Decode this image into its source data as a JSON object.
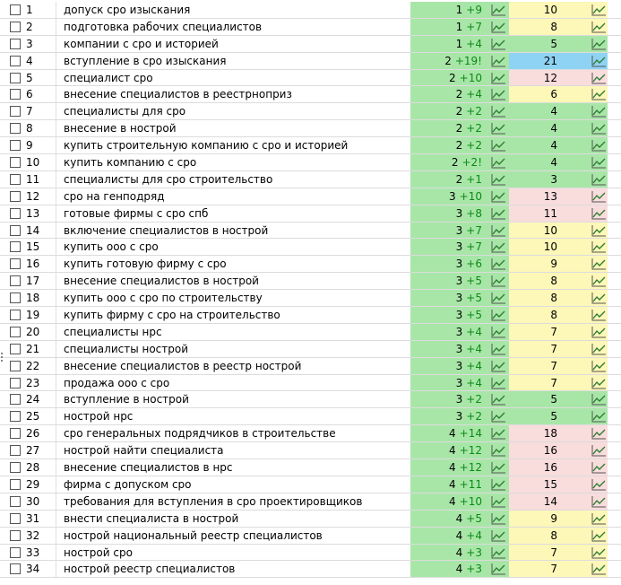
{
  "table": {
    "rows": [
      {
        "n": "1",
        "keyword": "допуск сро изыскания",
        "pos": "1",
        "delta": "+9",
        "freq": "10",
        "pos_color": "#a8e6a8",
        "freq_color": "#fdf7b8"
      },
      {
        "n": "2",
        "keyword": "подготовка рабочих специалистов",
        "pos": "1",
        "delta": "+7",
        "freq": "8",
        "pos_color": "#a8e6a8",
        "freq_color": "#fdf7b8"
      },
      {
        "n": "3",
        "keyword": "компании с сро и историей",
        "pos": "1",
        "delta": "+4",
        "freq": "5",
        "pos_color": "#a8e6a8",
        "freq_color": "#a8e6a8"
      },
      {
        "n": "4",
        "keyword": "вступление в сро изыскания",
        "pos": "2",
        "delta": "+19!",
        "freq": "21",
        "pos_color": "#a8e6a8",
        "freq_color": "#8fd3f4"
      },
      {
        "n": "5",
        "keyword": "специалист сро",
        "pos": "2",
        "delta": "+10",
        "freq": "12",
        "pos_color": "#a8e6a8",
        "freq_color": "#f9dcdc"
      },
      {
        "n": "6",
        "keyword": "внесение специалистов в реестрноприз",
        "pos": "2",
        "delta": "+4",
        "freq": "6",
        "pos_color": "#a8e6a8",
        "freq_color": "#fdf7b8"
      },
      {
        "n": "7",
        "keyword": "специалисты для сро",
        "pos": "2",
        "delta": "+2",
        "freq": "4",
        "pos_color": "#a8e6a8",
        "freq_color": "#a8e6a8"
      },
      {
        "n": "8",
        "keyword": "внесение в нострой",
        "pos": "2",
        "delta": "+2",
        "freq": "4",
        "pos_color": "#a8e6a8",
        "freq_color": "#a8e6a8"
      },
      {
        "n": "9",
        "keyword": "купить строительную компанию с сро и историей",
        "pos": "2",
        "delta": "+2",
        "freq": "4",
        "pos_color": "#a8e6a8",
        "freq_color": "#a8e6a8"
      },
      {
        "n": "10",
        "keyword": "купить компанию с сро",
        "pos": "2",
        "delta": "+2!",
        "freq": "4",
        "pos_color": "#a8e6a8",
        "freq_color": "#a8e6a8"
      },
      {
        "n": "11",
        "keyword": "специалисты для сро строительство",
        "pos": "2",
        "delta": "+1",
        "freq": "3",
        "pos_color": "#a8e6a8",
        "freq_color": "#a8e6a8"
      },
      {
        "n": "12",
        "keyword": "сро на генподряд",
        "pos": "3",
        "delta": "+10",
        "freq": "13",
        "pos_color": "#a8e6a8",
        "freq_color": "#f9dcdc"
      },
      {
        "n": "13",
        "keyword": "готовые фирмы с сро спб",
        "pos": "3",
        "delta": "+8",
        "freq": "11",
        "pos_color": "#a8e6a8",
        "freq_color": "#f9dcdc"
      },
      {
        "n": "14",
        "keyword": "включение специалистов в нострой",
        "pos": "3",
        "delta": "+7",
        "freq": "10",
        "pos_color": "#a8e6a8",
        "freq_color": "#fdf7b8"
      },
      {
        "n": "15",
        "keyword": "купить ооо с сро",
        "pos": "3",
        "delta": "+7",
        "freq": "10",
        "pos_color": "#a8e6a8",
        "freq_color": "#fdf7b8"
      },
      {
        "n": "16",
        "keyword": "купить готовую фирму с сро",
        "pos": "3",
        "delta": "+6",
        "freq": "9",
        "pos_color": "#a8e6a8",
        "freq_color": "#fdf7b8"
      },
      {
        "n": "17",
        "keyword": "внесение специалистов в нострой",
        "pos": "3",
        "delta": "+5",
        "freq": "8",
        "pos_color": "#a8e6a8",
        "freq_color": "#fdf7b8"
      },
      {
        "n": "18",
        "keyword": "купить ооо с сро по строительству",
        "pos": "3",
        "delta": "+5",
        "freq": "8",
        "pos_color": "#a8e6a8",
        "freq_color": "#fdf7b8"
      },
      {
        "n": "19",
        "keyword": "купить фирму с сро на строительство",
        "pos": "3",
        "delta": "+5",
        "freq": "8",
        "pos_color": "#a8e6a8",
        "freq_color": "#fdf7b8"
      },
      {
        "n": "20",
        "keyword": "специалисты нрс",
        "pos": "3",
        "delta": "+4",
        "freq": "7",
        "pos_color": "#a8e6a8",
        "freq_color": "#fdf7b8"
      },
      {
        "n": "21",
        "keyword": "специалисты нострой",
        "pos": "3",
        "delta": "+4",
        "freq": "7",
        "pos_color": "#a8e6a8",
        "freq_color": "#fdf7b8"
      },
      {
        "n": "22",
        "keyword": "внесение специалистов в реестр нострой",
        "pos": "3",
        "delta": "+4",
        "freq": "7",
        "pos_color": "#a8e6a8",
        "freq_color": "#fdf7b8"
      },
      {
        "n": "23",
        "keyword": "продажа ооо с сро",
        "pos": "3",
        "delta": "+4",
        "freq": "7",
        "pos_color": "#a8e6a8",
        "freq_color": "#fdf7b8"
      },
      {
        "n": "24",
        "keyword": "вступление в нострой",
        "pos": "3",
        "delta": "+2",
        "freq": "5",
        "pos_color": "#a8e6a8",
        "freq_color": "#a8e6a8"
      },
      {
        "n": "25",
        "keyword": "нострой нрс",
        "pos": "3",
        "delta": "+2",
        "freq": "5",
        "pos_color": "#a8e6a8",
        "freq_color": "#a8e6a8"
      },
      {
        "n": "26",
        "keyword": "сро генеральных подрядчиков в строительстве",
        "pos": "4",
        "delta": "+14",
        "freq": "18",
        "pos_color": "#a8e6a8",
        "freq_color": "#f9dcdc"
      },
      {
        "n": "27",
        "keyword": "нострой найти специалиста",
        "pos": "4",
        "delta": "+12",
        "freq": "16",
        "pos_color": "#a8e6a8",
        "freq_color": "#f9dcdc"
      },
      {
        "n": "28",
        "keyword": "внесение специалистов в нрс",
        "pos": "4",
        "delta": "+12",
        "freq": "16",
        "pos_color": "#a8e6a8",
        "freq_color": "#f9dcdc"
      },
      {
        "n": "29",
        "keyword": "фирма с допуском сро",
        "pos": "4",
        "delta": "+11",
        "freq": "15",
        "pos_color": "#a8e6a8",
        "freq_color": "#f9dcdc"
      },
      {
        "n": "30",
        "keyword": "требования для вступления в сро проектировщиков",
        "pos": "4",
        "delta": "+10",
        "freq": "14",
        "pos_color": "#a8e6a8",
        "freq_color": "#f9dcdc"
      },
      {
        "n": "31",
        "keyword": "внести специалиста в нострой",
        "pos": "4",
        "delta": "+5",
        "freq": "9",
        "pos_color": "#a8e6a8",
        "freq_color": "#fdf7b8"
      },
      {
        "n": "32",
        "keyword": "нострой национальный реестр специалистов",
        "pos": "4",
        "delta": "+4",
        "freq": "8",
        "pos_color": "#a8e6a8",
        "freq_color": "#fdf7b8"
      },
      {
        "n": "33",
        "keyword": "нострой сро",
        "pos": "4",
        "delta": "+3",
        "freq": "7",
        "pos_color": "#a8e6a8",
        "freq_color": "#fdf7b8"
      },
      {
        "n": "34",
        "keyword": "нострой реестр специалистов",
        "pos": "4",
        "delta": "+3",
        "freq": "7",
        "pos_color": "#a8e6a8",
        "freq_color": "#fdf7b8"
      }
    ],
    "chart_icon": "line-chart-icon",
    "colors": {
      "delta_text": "#0b8a16",
      "icon_stroke": "#2e7d32"
    }
  }
}
